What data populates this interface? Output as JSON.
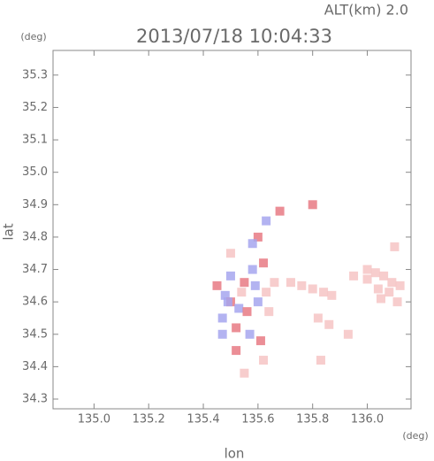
{
  "chart_data": {
    "type": "scatter",
    "title": "2013/07/18 10:04:33",
    "subtitle": "ALT(km) 2.0",
    "x_label": "lon",
    "y_label": "lat",
    "x_unit": "(deg)",
    "y_unit": "(deg)",
    "xlim": [
      134.85,
      136.16
    ],
    "ylim": [
      34.27,
      35.376
    ],
    "xticks": [
      {
        "value": 135,
        "label": "135.0"
      },
      135.2,
      135.4,
      135.6,
      135.8,
      {
        "value": 136,
        "label": "136.0"
      }
    ],
    "yticks": [
      34.3,
      34.4,
      34.5,
      34.6,
      34.7,
      34.8,
      34.9,
      {
        "value": 35,
        "label": "35.0"
      },
      35.1,
      35.2,
      35.3
    ],
    "x": [
      136.0,
      136.03,
      136.06,
      136.09,
      136.12,
      136.0,
      136.04,
      136.08,
      136.11,
      136.05,
      135.95,
      135.72,
      135.76,
      135.8,
      135.84,
      135.87,
      135.82,
      135.93,
      135.86,
      135.83,
      135.45,
      135.48,
      135.5,
      135.53,
      135.56,
      135.6,
      135.63,
      135.47,
      135.5,
      135.55,
      135.58,
      135.62,
      135.52,
      135.57,
      135.61,
      135.49,
      135.54,
      135.59,
      135.64,
      135.66,
      135.6,
      135.63,
      135.5,
      135.58,
      135.68,
      135.8,
      135.47,
      135.55,
      135.52,
      135.62,
      136.1
    ],
    "y": [
      34.7,
      34.69,
      34.68,
      34.66,
      34.65,
      34.67,
      34.64,
      34.63,
      34.6,
      34.61,
      34.68,
      34.66,
      34.65,
      34.64,
      34.63,
      34.62,
      34.55,
      34.5,
      34.53,
      34.42,
      34.65,
      34.62,
      34.6,
      34.58,
      34.57,
      34.6,
      34.63,
      34.55,
      34.68,
      34.66,
      34.7,
      34.72,
      34.52,
      34.5,
      34.48,
      34.6,
      34.63,
      34.65,
      34.57,
      34.66,
      34.8,
      34.85,
      34.75,
      34.78,
      34.88,
      34.9,
      34.5,
      34.38,
      34.45,
      34.42,
      34.77
    ],
    "colors": [
      "#f6c4c4",
      "#f6c4c4",
      "#f6c4c4",
      "#f6c4c4",
      "#f6c4c4",
      "#f6c4c4",
      "#f6c4c4",
      "#f6c4c4",
      "#f6c4c4",
      "#f6c4c4",
      "#f6c4c4",
      "#f6c4c4",
      "#f6c4c4",
      "#f6c4c4",
      "#f6c4c4",
      "#f6c4c4",
      "#f6c4c4",
      "#f6c4c4",
      "#f6c4c4",
      "#f6c4c4",
      "#e87a84",
      "#a6a6ee",
      "#e87a84",
      "#a6a6ee",
      "#e87a84",
      "#a6a6ee",
      "#f6c4c4",
      "#a6a6ee",
      "#a6a6ee",
      "#e87a84",
      "#a6a6ee",
      "#e87a84",
      "#e87a84",
      "#a6a6ee",
      "#e87a84",
      "#a6a6ee",
      "#f6c4c4",
      "#a6a6ee",
      "#f6c4c4",
      "#f6c4c4",
      "#e87a84",
      "#a6a6ee",
      "#f6c4c4",
      "#a6a6ee",
      "#e87a84",
      "#e87a84",
      "#a6a6ee",
      "#f6c4c4",
      "#e87a84",
      "#f6c4c4",
      "#f6c4c4"
    ]
  }
}
